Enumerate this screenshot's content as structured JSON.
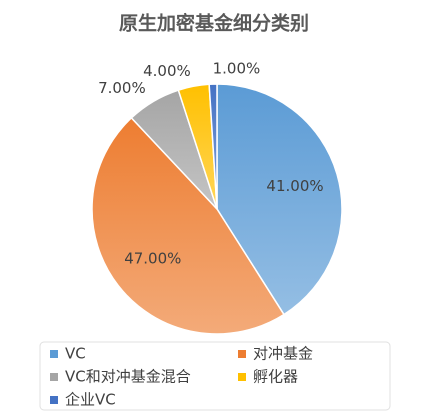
{
  "chart_data": {
    "type": "pie",
    "title": "原生加密基金细分类别",
    "categories": [
      "VC",
      "对冲基金",
      "VC和对冲基金混合",
      "孵化器",
      "企业VC"
    ],
    "values": [
      41,
      47,
      7,
      4,
      1
    ],
    "value_labels": [
      "41.00%",
      "47.00%",
      "7.00%",
      "4.00%",
      "1.00%"
    ],
    "colors": [
      "#5b9bd5",
      "#ed7d31",
      "#a5a5a5",
      "#ffc000",
      "#4472c4"
    ]
  }
}
